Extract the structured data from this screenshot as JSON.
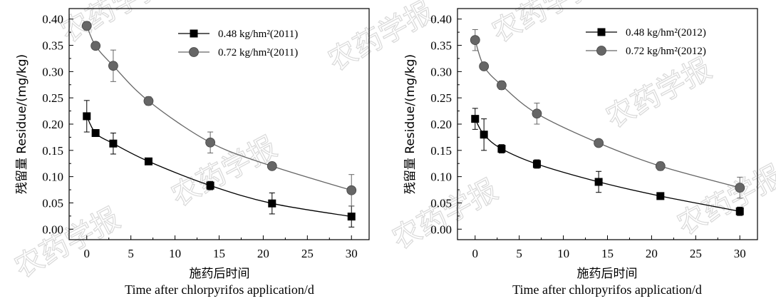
{
  "chart_data": [
    {
      "type": "line",
      "title": "",
      "xlabel_cn": "施药后时间",
      "xlabel_en": "Time after chlorpyrifos application/d",
      "ylabel": "残留量 Residue/(mg/kg)",
      "xlim": [
        -2,
        32
      ],
      "ylim": [
        -0.02,
        0.42
      ],
      "xticks": [
        0,
        5,
        10,
        15,
        20,
        25,
        30
      ],
      "yticks": [
        0.0,
        0.05,
        0.1,
        0.15,
        0.2,
        0.25,
        0.3,
        0.35,
        0.4
      ],
      "series": [
        {
          "name": "0.48 kg/hm²(2011)",
          "marker": "square",
          "color": "#000000",
          "x": [
            0,
            1,
            3,
            7,
            14,
            21,
            30
          ],
          "values": [
            0.215,
            0.183,
            0.163,
            0.129,
            0.083,
            0.049,
            0.024
          ],
          "errors": [
            0.03,
            0.005,
            0.02,
            0.003,
            0.008,
            0.02,
            0.02
          ]
        },
        {
          "name": "0.72 kg/hm²(2011)",
          "marker": "circle",
          "color": "#666666",
          "x": [
            0,
            1,
            3,
            7,
            14,
            21,
            30
          ],
          "values": [
            0.387,
            0.349,
            0.311,
            0.244,
            0.165,
            0.12,
            0.074
          ],
          "errors": [
            0.008,
            0.003,
            0.03,
            0.008,
            0.02,
            0.003,
            0.03
          ]
        }
      ]
    },
    {
      "type": "line",
      "title": "",
      "xlabel_cn": "施药后时间",
      "xlabel_en": "Time after chlorpyrifos application/d",
      "ylabel": "残留量 Residue/(mg/kg)",
      "xlim": [
        -2,
        32
      ],
      "ylim": [
        -0.02,
        0.42
      ],
      "xticks": [
        0,
        5,
        10,
        15,
        20,
        25,
        30
      ],
      "yticks": [
        0.0,
        0.05,
        0.1,
        0.15,
        0.2,
        0.25,
        0.3,
        0.35,
        0.4
      ],
      "series": [
        {
          "name": "0.48 kg/hm²(2012)",
          "marker": "square",
          "color": "#000000",
          "x": [
            0,
            1,
            3,
            7,
            14,
            21,
            30
          ],
          "values": [
            0.21,
            0.18,
            0.153,
            0.124,
            0.09,
            0.063,
            0.034
          ],
          "errors": [
            0.02,
            0.03,
            0.008,
            0.008,
            0.02,
            0.003,
            0.008
          ]
        },
        {
          "name": "0.72 kg/hm²(2012)",
          "marker": "circle",
          "color": "#666666",
          "x": [
            0,
            1,
            3,
            7,
            14,
            21,
            30
          ],
          "values": [
            0.36,
            0.31,
            0.274,
            0.22,
            0.164,
            0.12,
            0.079
          ],
          "errors": [
            0.02,
            0.003,
            0.008,
            0.02,
            0.003,
            0.008,
            0.02
          ]
        }
      ]
    }
  ],
  "watermark": "农药学报"
}
